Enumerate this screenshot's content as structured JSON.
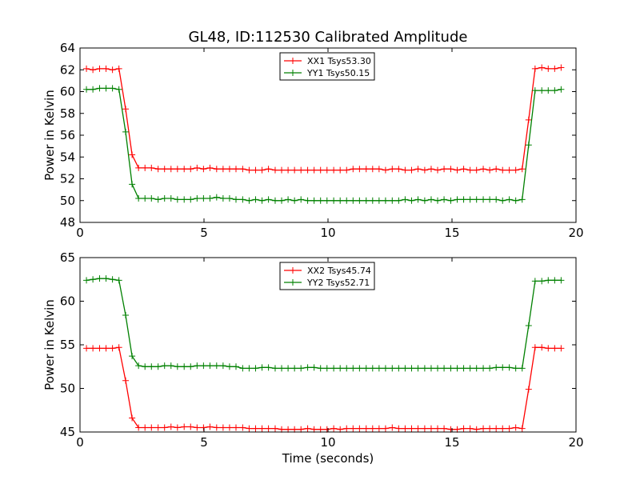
{
  "figure": {
    "title": "GL48, ID:112530 Calibrated Amplitude",
    "xlabel": "Time (seconds)"
  },
  "chart_data": [
    {
      "type": "line",
      "title": "GL48, ID:112530 Calibrated Amplitude",
      "xlabel": "",
      "ylabel": "Power in Kelvin",
      "xlim": [
        0,
        20
      ],
      "ylim": [
        48,
        64
      ],
      "xticks": [
        0,
        5,
        10,
        15,
        20
      ],
      "yticks": [
        48,
        50,
        52,
        54,
        56,
        58,
        60,
        62,
        64
      ],
      "grid": false,
      "legend_position": "top-center",
      "x": [
        0.26,
        0.52,
        0.79,
        1.05,
        1.31,
        1.57,
        1.84,
        2.1,
        2.36,
        2.62,
        2.88,
        3.15,
        3.41,
        3.67,
        3.93,
        4.2,
        4.46,
        4.72,
        4.98,
        5.24,
        5.51,
        5.77,
        6.03,
        6.29,
        6.56,
        6.82,
        7.08,
        7.34,
        7.6,
        7.87,
        8.13,
        8.39,
        8.65,
        8.91,
        9.18,
        9.44,
        9.7,
        9.96,
        10.23,
        10.49,
        10.75,
        11.01,
        11.27,
        11.54,
        11.8,
        12.06,
        12.32,
        12.59,
        12.85,
        13.11,
        13.37,
        13.63,
        13.9,
        14.16,
        14.42,
        14.68,
        14.95,
        15.21,
        15.47,
        15.73,
        15.99,
        16.26,
        16.52,
        16.78,
        17.04,
        17.31,
        17.57,
        17.83,
        18.09,
        18.35,
        18.62,
        18.88,
        19.14,
        19.4
      ],
      "series": [
        {
          "name": "XX1 Tsys53.30",
          "color": "#ff0000",
          "values": [
            62.1,
            62.0,
            62.1,
            62.1,
            62.0,
            62.1,
            58.4,
            54.2,
            53.0,
            53.0,
            53.0,
            52.9,
            52.9,
            52.9,
            52.9,
            52.9,
            52.9,
            53.0,
            52.9,
            53.0,
            52.9,
            52.9,
            52.9,
            52.9,
            52.9,
            52.8,
            52.8,
            52.8,
            52.9,
            52.8,
            52.8,
            52.8,
            52.8,
            52.8,
            52.8,
            52.8,
            52.8,
            52.8,
            52.8,
            52.8,
            52.8,
            52.9,
            52.9,
            52.9,
            52.9,
            52.9,
            52.8,
            52.9,
            52.9,
            52.8,
            52.8,
            52.9,
            52.8,
            52.9,
            52.8,
            52.9,
            52.9,
            52.8,
            52.9,
            52.8,
            52.8,
            52.9,
            52.8,
            52.9,
            52.8,
            52.8,
            52.8,
            52.9,
            57.4,
            62.1,
            62.2,
            62.1,
            62.1,
            62.2
          ]
        },
        {
          "name": "YY1 Tsys50.15",
          "color": "#008000",
          "values": [
            60.2,
            60.2,
            60.3,
            60.3,
            60.3,
            60.2,
            56.3,
            51.5,
            50.2,
            50.2,
            50.2,
            50.1,
            50.2,
            50.2,
            50.1,
            50.1,
            50.1,
            50.2,
            50.2,
            50.2,
            50.3,
            50.2,
            50.2,
            50.1,
            50.1,
            50.0,
            50.1,
            50.0,
            50.1,
            50.0,
            50.0,
            50.1,
            50.0,
            50.1,
            50.0,
            50.0,
            50.0,
            50.0,
            50.0,
            50.0,
            50.0,
            50.0,
            50.0,
            50.0,
            50.0,
            50.0,
            50.0,
            50.0,
            50.0,
            50.1,
            50.0,
            50.1,
            50.0,
            50.1,
            50.0,
            50.1,
            50.0,
            50.1,
            50.1,
            50.1,
            50.1,
            50.1,
            50.1,
            50.1,
            50.0,
            50.1,
            50.0,
            50.1,
            55.1,
            60.1,
            60.1,
            60.1,
            60.1,
            60.2
          ]
        }
      ]
    },
    {
      "type": "line",
      "title": "",
      "xlabel": "Time (seconds)",
      "ylabel": "Power in Kelvin",
      "xlim": [
        0,
        20
      ],
      "ylim": [
        45,
        65
      ],
      "xticks": [
        0,
        5,
        10,
        15,
        20
      ],
      "yticks": [
        45,
        50,
        55,
        60,
        65
      ],
      "grid": false,
      "legend_position": "top-center",
      "x": [
        0.26,
        0.52,
        0.79,
        1.05,
        1.31,
        1.57,
        1.84,
        2.1,
        2.36,
        2.62,
        2.88,
        3.15,
        3.41,
        3.67,
        3.93,
        4.2,
        4.46,
        4.72,
        4.98,
        5.24,
        5.51,
        5.77,
        6.03,
        6.29,
        6.56,
        6.82,
        7.08,
        7.34,
        7.6,
        7.87,
        8.13,
        8.39,
        8.65,
        8.91,
        9.18,
        9.44,
        9.7,
        9.96,
        10.23,
        10.49,
        10.75,
        11.01,
        11.27,
        11.54,
        11.8,
        12.06,
        12.32,
        12.59,
        12.85,
        13.11,
        13.37,
        13.63,
        13.9,
        14.16,
        14.42,
        14.68,
        14.95,
        15.21,
        15.47,
        15.73,
        15.99,
        16.26,
        16.52,
        16.78,
        17.04,
        17.31,
        17.57,
        17.83,
        18.09,
        18.35,
        18.62,
        18.88,
        19.14,
        19.4
      ],
      "series": [
        {
          "name": "XX2 Tsys45.74",
          "color": "#ff0000",
          "values": [
            54.6,
            54.6,
            54.6,
            54.6,
            54.6,
            54.7,
            50.9,
            46.6,
            45.5,
            45.5,
            45.5,
            45.5,
            45.5,
            45.6,
            45.5,
            45.6,
            45.6,
            45.5,
            45.5,
            45.6,
            45.5,
            45.5,
            45.5,
            45.5,
            45.5,
            45.4,
            45.4,
            45.4,
            45.4,
            45.4,
            45.3,
            45.3,
            45.3,
            45.3,
            45.4,
            45.3,
            45.3,
            45.3,
            45.4,
            45.3,
            45.4,
            45.4,
            45.4,
            45.4,
            45.4,
            45.4,
            45.4,
            45.5,
            45.4,
            45.4,
            45.4,
            45.4,
            45.4,
            45.4,
            45.4,
            45.4,
            45.3,
            45.3,
            45.4,
            45.4,
            45.3,
            45.4,
            45.4,
            45.4,
            45.4,
            45.4,
            45.5,
            45.4,
            49.9,
            54.7,
            54.7,
            54.6,
            54.6,
            54.6
          ]
        },
        {
          "name": "YY2 Tsys52.71",
          "color": "#008000",
          "values": [
            62.4,
            62.5,
            62.6,
            62.6,
            62.5,
            62.4,
            58.4,
            53.7,
            52.6,
            52.5,
            52.5,
            52.5,
            52.6,
            52.6,
            52.5,
            52.5,
            52.5,
            52.6,
            52.6,
            52.6,
            52.6,
            52.6,
            52.5,
            52.5,
            52.3,
            52.3,
            52.3,
            52.4,
            52.4,
            52.3,
            52.3,
            52.3,
            52.3,
            52.3,
            52.4,
            52.4,
            52.3,
            52.3,
            52.3,
            52.3,
            52.3,
            52.3,
            52.3,
            52.3,
            52.3,
            52.3,
            52.3,
            52.3,
            52.3,
            52.3,
            52.3,
            52.3,
            52.3,
            52.3,
            52.3,
            52.3,
            52.3,
            52.3,
            52.3,
            52.3,
            52.3,
            52.3,
            52.3,
            52.4,
            52.4,
            52.4,
            52.3,
            52.3,
            57.2,
            62.3,
            62.3,
            62.4,
            62.4,
            62.4
          ]
        }
      ]
    }
  ]
}
